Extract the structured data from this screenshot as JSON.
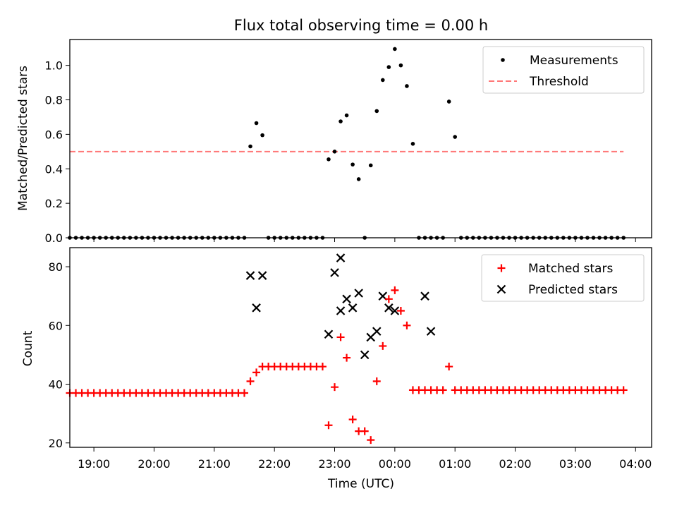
{
  "chart_data": [
    {
      "type": "scatter",
      "title": "Flux total observing time = 0.00 h",
      "xlabel": "",
      "ylabel": "Matched/Predicted stars",
      "xlim": [
        "18:36",
        "04:16"
      ],
      "ylim": [
        0,
        1.15
      ],
      "yticks": [
        "0.0",
        "0.2",
        "0.4",
        "0.6",
        "0.8",
        "1.0"
      ],
      "legend_position": "top-right",
      "series": [
        {
          "name": "Measurements",
          "marker": "dot",
          "color": "#000000",
          "x": [
            "18:36",
            "18:42",
            "18:48",
            "18:54",
            "19:00",
            "19:06",
            "19:12",
            "19:18",
            "19:24",
            "19:30",
            "19:36",
            "19:42",
            "19:48",
            "19:54",
            "20:00",
            "20:06",
            "20:12",
            "20:18",
            "20:24",
            "20:30",
            "20:36",
            "20:42",
            "20:48",
            "20:54",
            "21:00",
            "21:06",
            "21:12",
            "21:18",
            "21:24",
            "21:30",
            "21:36",
            "21:42",
            "21:48",
            "21:54",
            "22:00",
            "22:06",
            "22:12",
            "22:18",
            "22:24",
            "22:30",
            "22:36",
            "22:42",
            "22:48",
            "22:54",
            "23:00",
            "23:06",
            "23:12",
            "23:18",
            "23:24",
            "23:30",
            "23:36",
            "23:42",
            "23:48",
            "23:54",
            "00:00",
            "00:06",
            "00:12",
            "00:18",
            "00:24",
            "00:30",
            "00:36",
            "00:42",
            "00:48",
            "00:54",
            "01:00",
            "01:06",
            "01:12",
            "01:18",
            "01:24",
            "01:30",
            "01:36",
            "01:42",
            "01:48",
            "01:54",
            "02:00",
            "02:06",
            "02:12",
            "02:18",
            "02:24",
            "02:30",
            "02:36",
            "02:42",
            "02:48",
            "02:54",
            "03:00",
            "03:06",
            "03:12",
            "03:18",
            "03:24",
            "03:30",
            "03:36",
            "03:42",
            "03:48"
          ],
          "y": [
            0,
            0,
            0,
            0,
            0,
            0,
            0,
            0,
            0,
            0,
            0,
            0,
            0,
            0,
            0,
            0,
            0,
            0,
            0,
            0,
            0,
            0,
            0,
            0,
            0,
            0,
            0,
            0,
            0,
            0,
            0.53,
            0.665,
            0.595,
            0,
            0,
            0,
            0,
            0,
            0,
            0,
            0,
            0,
            0,
            0.455,
            0.5,
            0.675,
            0.71,
            0.425,
            0.34,
            0,
            0.42,
            0.735,
            0.915,
            0.99,
            1.095,
            1.0,
            0.88,
            0.545,
            0,
            0,
            0,
            0,
            0,
            0.79,
            0.585,
            0,
            0,
            0,
            0,
            0,
            0,
            0,
            0,
            0,
            0,
            0,
            0,
            0,
            0,
            0,
            0,
            0,
            0,
            0,
            0,
            0,
            0,
            0,
            0,
            0,
            0,
            0,
            0
          ]
        },
        {
          "name": "Threshold",
          "type": "line",
          "style": "dashed",
          "color": "#ff7777",
          "x": [
            "18:36",
            "03:48"
          ],
          "y": [
            0.5,
            0.5
          ]
        }
      ]
    },
    {
      "type": "scatter",
      "title": "",
      "xlabel": "Time (UTC)",
      "ylabel": "Count",
      "xlim": [
        "18:36",
        "04:16"
      ],
      "ylim": [
        18.5,
        86.5
      ],
      "yticks": [
        "20",
        "40",
        "60",
        "80"
      ],
      "xticks": [
        "19:00",
        "20:00",
        "21:00",
        "22:00",
        "23:00",
        "00:00",
        "01:00",
        "02:00",
        "03:00",
        "04:00"
      ],
      "legend_position": "top-right",
      "series": [
        {
          "name": "Matched stars",
          "marker": "plus",
          "color": "#ff0000",
          "x": [
            "18:36",
            "18:42",
            "18:48",
            "18:54",
            "19:00",
            "19:06",
            "19:12",
            "19:18",
            "19:24",
            "19:30",
            "19:36",
            "19:42",
            "19:48",
            "19:54",
            "20:00",
            "20:06",
            "20:12",
            "20:18",
            "20:24",
            "20:30",
            "20:36",
            "20:42",
            "20:48",
            "20:54",
            "21:00",
            "21:06",
            "21:12",
            "21:18",
            "21:24",
            "21:30",
            "21:36",
            "21:42",
            "21:48",
            "21:54",
            "22:00",
            "22:06",
            "22:12",
            "22:18",
            "22:24",
            "22:30",
            "22:36",
            "22:42",
            "22:48",
            "22:54",
            "23:00",
            "23:06",
            "23:12",
            "23:18",
            "23:24",
            "23:30",
            "23:36",
            "23:42",
            "23:48",
            "23:54",
            "00:00",
            "00:06",
            "00:12",
            "00:18",
            "00:24",
            "00:30",
            "00:36",
            "00:42",
            "00:48",
            "00:54",
            "01:00",
            "01:06",
            "01:12",
            "01:18",
            "01:24",
            "01:30",
            "01:36",
            "01:42",
            "01:48",
            "01:54",
            "02:00",
            "02:06",
            "02:12",
            "02:18",
            "02:24",
            "02:30",
            "02:36",
            "02:42",
            "02:48",
            "02:54",
            "03:00",
            "03:06",
            "03:12",
            "03:18",
            "03:24",
            "03:30",
            "03:36",
            "03:42",
            "03:48"
          ],
          "y": [
            37,
            37,
            37,
            37,
            37,
            37,
            37,
            37,
            37,
            37,
            37,
            37,
            37,
            37,
            37,
            37,
            37,
            37,
            37,
            37,
            37,
            37,
            37,
            37,
            37,
            37,
            37,
            37,
            37,
            37,
            41,
            44,
            46,
            46,
            46,
            46,
            46,
            46,
            46,
            46,
            46,
            46,
            46,
            26,
            39,
            56,
            49,
            28,
            24,
            24,
            21,
            41,
            53,
            69,
            72,
            65,
            60,
            38,
            38,
            38,
            38,
            38,
            38,
            46,
            38,
            38,
            38,
            38,
            38,
            38,
            38,
            38,
            38,
            38,
            38,
            38,
            38,
            38,
            38,
            38,
            38,
            38,
            38,
            38,
            38,
            38,
            38,
            38,
            38,
            38,
            38,
            38,
            38
          ]
        },
        {
          "name": "Predicted stars",
          "marker": "x",
          "color": "#000000",
          "x": [
            "21:36",
            "21:42",
            "21:48",
            "22:54",
            "23:00",
            "23:06",
            "23:12",
            "23:18",
            "23:24",
            "23:30",
            "23:36",
            "23:42",
            "23:48",
            "23:54",
            "00:00",
            "00:30",
            "00:36",
            "23:06"
          ],
          "y": [
            77,
            66,
            77,
            57,
            78,
            83,
            69,
            66,
            71,
            50,
            56,
            58,
            70,
            66,
            65,
            70,
            58,
            65
          ]
        }
      ]
    }
  ]
}
